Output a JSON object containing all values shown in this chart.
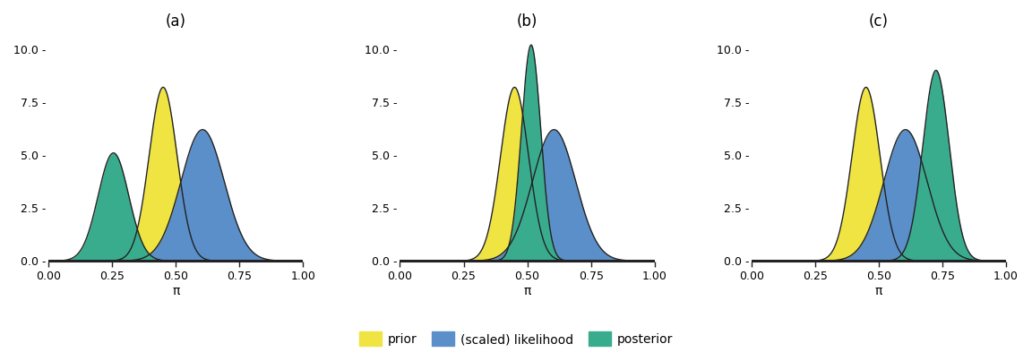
{
  "titles": [
    "(a)",
    "(b)",
    "(c)"
  ],
  "xlabel": "π",
  "ylabel_ticks": [
    0.0,
    2.5,
    5.0,
    7.5,
    10.0
  ],
  "ytick_labels": [
    "0.0 -",
    "2.5 -",
    "5.0 -",
    "7.5 -",
    "10.0 -"
  ],
  "xlim": [
    0.0,
    1.0
  ],
  "ylim": [
    -0.15,
    10.8
  ],
  "xticks": [
    0.0,
    0.25,
    0.5,
    0.75,
    1.0
  ],
  "prior_mu": 0.45,
  "prior_sigma": 0.055,
  "prior_scale": 8.2,
  "likelihood_mu": 0.605,
  "likelihood_sigma": 0.085,
  "likelihood_scale": 6.2,
  "posterior_mus": [
    0.255,
    0.515,
    0.725
  ],
  "posterior_sigmas": [
    0.06,
    0.038,
    0.052
  ],
  "posterior_scales": [
    5.1,
    10.2,
    9.0
  ],
  "color_prior": "#f0e442",
  "color_likelihood": "#5b8fc9",
  "color_posterior": "#3aac8e",
  "color_outline": "#222222",
  "legend_labels": [
    "prior",
    "(scaled) likelihood",
    "posterior"
  ],
  "background_color": "#ffffff",
  "title_fontsize": 12,
  "label_fontsize": 10,
  "tick_fontsize": 9,
  "legend_fontsize": 10
}
